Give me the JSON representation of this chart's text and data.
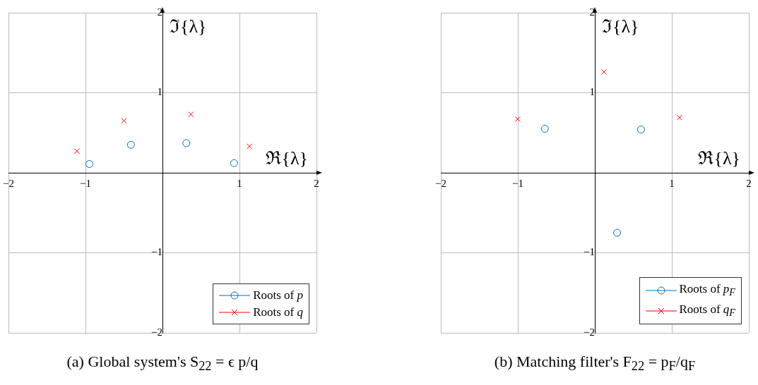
{
  "chart_data": [
    {
      "type": "scatter",
      "title": "(a) Global system's S$_{22}$ = ϵ p/q",
      "xlabel": "ℜ{λ}",
      "ylabel": "ℑ{λ}",
      "xlim": [
        -2,
        2
      ],
      "ylim": [
        -2,
        2
      ],
      "xticks": [
        -2,
        -1,
        1,
        2
      ],
      "yticks": [
        -2,
        -1,
        1,
        2
      ],
      "grid": true,
      "legend": "bottom right",
      "series": [
        {
          "name": "Roots of p",
          "color": "#0072bd",
          "marker": "circle",
          "x": [
            -0.95,
            -0.41,
            0.31,
            0.93
          ],
          "values": [
            0.11,
            0.35,
            0.37,
            0.12
          ]
        },
        {
          "name": "Roots of q",
          "color": "#ff0000",
          "marker": "cross",
          "x": [
            -1.11,
            -0.5,
            0.37,
            1.13
          ],
          "values": [
            0.27,
            0.65,
            0.73,
            0.33
          ]
        }
      ]
    },
    {
      "type": "scatter",
      "title": "(b) Matching filter's F$_{22}$ = p$_{F}$/q$_{F}$",
      "xlabel": "ℜ{λ}",
      "ylabel": "ℑ{λ}",
      "xlim": [
        -2,
        2
      ],
      "ylim": [
        -2,
        2
      ],
      "xticks": [
        -2,
        -1,
        1,
        2
      ],
      "yticks": [
        -2,
        -1,
        1,
        2
      ],
      "grid": true,
      "legend": "bottom right",
      "series": [
        {
          "name": "Roots of p$_{F}$",
          "color": "#0072bd",
          "marker": "circle",
          "x": [
            -0.65,
            0.6,
            0.29
          ],
          "values": [
            0.55,
            0.54,
            -0.75
          ]
        },
        {
          "name": "Roots of q$_{F}$",
          "color": "#ff0000",
          "marker": "cross",
          "x": [
            -1.0,
            0.12,
            1.1
          ],
          "values": [
            0.67,
            1.26,
            0.69
          ]
        }
      ]
    }
  ]
}
